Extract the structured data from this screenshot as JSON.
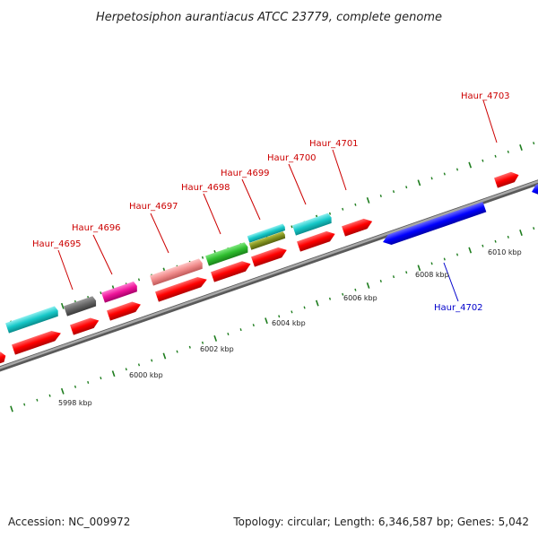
{
  "title": "Herpetosiphon aurantiacus ATCC 23779, complete genome",
  "footer": {
    "accession": "Accession: NC_009972",
    "summary": "Topology: circular; Length: 6,346,587 bp; Genes: 5,042"
  },
  "colors": {
    "backbone": "#8a8a8a",
    "tick": "#1e7d1e",
    "label_forward": "#cc0000",
    "label_reverse": "#0000cc",
    "cds_forward": "#ff0000",
    "cds_reverse": "#0000ff"
  },
  "scale_labels": [
    "5998 kbp",
    "6000 kbp",
    "6002 kbp",
    "6004 kbp",
    "6006 kbp",
    "6008 kbp",
    "6010 kbp"
  ],
  "gene_labels": {
    "haur_4695": "Haur_4695",
    "haur_4696": "Haur_4696",
    "haur_4697": "Haur_4697",
    "haur_4698": "Haur_4698",
    "haur_4699": "Haur_4699",
    "haur_4700": "Haur_4700",
    "haur_4701": "Haur_4701",
    "haur_4702": "Haur_4702",
    "haur_4703": "Haur_4703"
  }
}
